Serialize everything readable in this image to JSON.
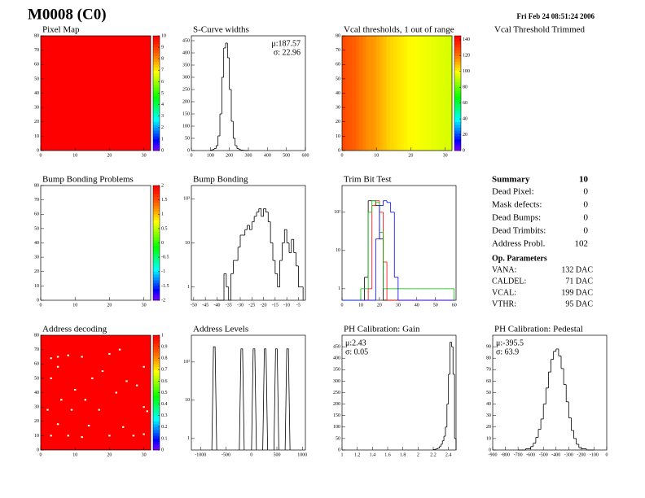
{
  "header": {
    "title": "M0008 (C0)",
    "date": "Fri Feb 24 08:51:24 2006"
  },
  "chart_data": [
    {
      "type": "heatmap",
      "title": "Pixel Map",
      "xlim": [
        0,
        32
      ],
      "ylim": [
        0,
        80
      ],
      "xticks": [
        0,
        10,
        20,
        30
      ],
      "yticks": [
        0,
        10,
        20,
        30,
        40,
        50,
        60,
        70,
        80
      ],
      "zlim": [
        0,
        10
      ],
      "zticks": [
        0,
        1,
        2,
        3,
        4,
        5,
        6,
        7,
        8,
        9,
        10
      ],
      "fill_value": 10
    },
    {
      "type": "histogram",
      "title": "S-Curve widths",
      "xlim": [
        0,
        600
      ],
      "ylim": [
        0,
        470
      ],
      "xticks": [
        0,
        100,
        200,
        300,
        400,
        500,
        600
      ],
      "yticks": [
        0,
        50,
        100,
        150,
        200,
        250,
        300,
        350,
        400,
        450
      ],
      "stats": [
        "μ:187.57",
        "σ: 22.96"
      ],
      "stats_corner": "right",
      "color": "#000000",
      "bins": [
        100,
        110,
        120,
        130,
        140,
        150,
        160,
        170,
        180,
        190,
        200,
        210,
        220,
        230,
        240,
        250,
        260,
        270,
        280,
        290,
        300
      ],
      "values": [
        2,
        4,
        8,
        20,
        60,
        150,
        300,
        420,
        440,
        380,
        250,
        120,
        50,
        20,
        8,
        4,
        2,
        1,
        0,
        0
      ]
    },
    {
      "type": "heatmap",
      "title": "Vcal thresholds, 1 out of range",
      "xlim": [
        0,
        32
      ],
      "ylim": [
        0,
        80
      ],
      "xticks": [
        0,
        10,
        20,
        30
      ],
      "yticks": [
        0,
        10,
        20,
        30,
        40,
        50,
        60,
        70,
        80
      ],
      "zlim": [
        0,
        145
      ],
      "zticks": [
        0,
        20,
        40,
        60,
        80,
        100,
        120,
        140
      ],
      "column_values": [
        128,
        126,
        125,
        124,
        122,
        120,
        118,
        116,
        115,
        114,
        112,
        110,
        108,
        106,
        105,
        104,
        103,
        102,
        101,
        100,
        100,
        99,
        98,
        98,
        97,
        97,
        96,
        96,
        95,
        95,
        94,
        94
      ]
    },
    {
      "type": "blank",
      "title": "Vcal Threshold Trimmed"
    },
    {
      "type": "heatmap",
      "title": "Bump Bonding Problems",
      "xlim": [
        0,
        32
      ],
      "ylim": [
        0,
        80
      ],
      "xticks": [
        0,
        10,
        20,
        30
      ],
      "yticks": [
        0,
        10,
        20,
        30,
        40,
        50,
        60,
        70,
        80
      ],
      "zlim": [
        -2,
        2
      ],
      "zticks": [
        -2,
        -1.5,
        -1,
        -0.5,
        0,
        0.5,
        1,
        1.5,
        2
      ]
    },
    {
      "type": "histogram",
      "title": "Bump Bonding",
      "log": true,
      "xlim": [
        -51,
        -2
      ],
      "ylim": [
        0.5,
        200
      ],
      "xticks": [
        -50,
        -45,
        -40,
        -35,
        -30,
        -25,
        -20,
        -15,
        -10,
        -5
      ],
      "yticks": [
        1,
        10,
        {
          "value": 100,
          "label": "10²"
        }
      ],
      "color": "#000000",
      "bins": [
        -40,
        -39,
        -38,
        -37,
        -36,
        -35,
        -34,
        -33,
        -32,
        -31,
        -30,
        -29,
        -28,
        -27,
        -26,
        -25,
        -24,
        -23,
        -22,
        -21,
        -20,
        -19,
        -18,
        -17,
        -16,
        -15,
        -14,
        -13,
        -12,
        -11,
        -10,
        -9,
        -8,
        -7,
        -6,
        -5,
        -4,
        -3
      ],
      "values": [
        0,
        0,
        0,
        2,
        1,
        0,
        2,
        4,
        4,
        8,
        15,
        15,
        20,
        25,
        20,
        30,
        40,
        50,
        60,
        40,
        60,
        50,
        30,
        10,
        4,
        2,
        1,
        4,
        10,
        20,
        10,
        6,
        12,
        6,
        3,
        1,
        1
      ]
    },
    {
      "type": "histogram",
      "title": "Trim Bit Test",
      "log": true,
      "xlim": [
        0,
        61
      ],
      "ylim": [
        0.5,
        500
      ],
      "xticks": [
        0,
        10,
        20,
        30,
        40,
        50,
        60
      ],
      "yticks": [
        1,
        10,
        {
          "value": 100,
          "label": "10²"
        }
      ],
      "bins": [
        0,
        2,
        4,
        6,
        8,
        10,
        12,
        14,
        16,
        18,
        20,
        22,
        24,
        26,
        28,
        30,
        32,
        34,
        36,
        38,
        40,
        42,
        44,
        46,
        48,
        50,
        52,
        54,
        56,
        58,
        60
      ],
      "series": [
        {
          "color": "#000000",
          "values": [
            0,
            0,
            0,
            0,
            0,
            0,
            2,
            200,
            200,
            150,
            20,
            0,
            0,
            0,
            0,
            0,
            0,
            0,
            0,
            0,
            0,
            0,
            0,
            0,
            0,
            0,
            0,
            0,
            0,
            0
          ]
        },
        {
          "color": "#ff0000",
          "values": [
            0,
            0,
            0,
            0,
            0,
            0,
            0,
            1,
            150,
            200,
            100,
            5,
            0,
            0,
            0,
            0,
            0,
            0,
            0,
            0,
            0,
            0,
            0,
            0,
            0,
            0,
            0,
            0,
            0,
            0
          ]
        },
        {
          "color": "#00c000",
          "values": [
            0,
            0,
            0,
            0,
            0,
            1,
            1,
            100,
            200,
            180,
            30,
            1,
            1,
            1,
            1,
            1,
            1,
            1,
            1,
            1,
            1,
            1,
            1,
            1,
            1,
            1,
            1,
            1,
            1,
            1
          ]
        },
        {
          "color": "#0000ff",
          "values": [
            0,
            0,
            0,
            0,
            0,
            0,
            0,
            0,
            0,
            20,
            150,
            200,
            180,
            100,
            2,
            0,
            0,
            0,
            0,
            0,
            0,
            0,
            0,
            0,
            0,
            0,
            0,
            0,
            0,
            0
          ]
        }
      ]
    },
    {
      "type": "heatmap",
      "title": "Address decoding",
      "xlim": [
        0,
        32
      ],
      "ylim": [
        0,
        80
      ],
      "xticks": [
        0,
        10,
        20,
        30
      ],
      "yticks": [
        0,
        10,
        20,
        30,
        40,
        50,
        60,
        70,
        80
      ],
      "zlim": [
        0,
        1
      ],
      "zticks": [
        0,
        0.1,
        0.2,
        0.3,
        0.4,
        0.5,
        0.6,
        0.7,
        0.8,
        0.9,
        1
      ],
      "fill_value": 1,
      "points": {
        "x": [
          3,
          5,
          8,
          12,
          20,
          23,
          5,
          18,
          30,
          3,
          15,
          25,
          28,
          10,
          22,
          6,
          13,
          30,
          2,
          9,
          17,
          31,
          5,
          14,
          24,
          3,
          8,
          12,
          20,
          27,
          30
        ],
        "y": [
          64,
          65,
          66,
          65,
          67,
          70,
          58,
          55,
          58,
          50,
          50,
          48,
          45,
          42,
          40,
          35,
          35,
          30,
          28,
          28,
          28,
          27,
          18,
          17,
          16,
          10,
          10,
          9,
          10,
          10,
          11
        ]
      }
    },
    {
      "type": "spikes",
      "title": "Address Levels",
      "log": true,
      "xlim": [
        -1180,
        1060
      ],
      "ylim": [
        0.5,
        500
      ],
      "xticks": [
        -1000,
        -500,
        0,
        500,
        1000
      ],
      "yticks": [
        1,
        10,
        {
          "value": 100,
          "label": "10²"
        }
      ],
      "color": "#000000",
      "x": [
        -730,
        -190,
        50,
        270,
        490,
        710
      ],
      "values": [
        250,
        220,
        220,
        220,
        220,
        220
      ]
    },
    {
      "type": "histogram",
      "title": "PH Calibration: Gain",
      "xlim": [
        1,
        2.5
      ],
      "ylim": [
        0,
        500
      ],
      "xticks": [
        1,
        1.2,
        1.4,
        1.6,
        1.8,
        2,
        2.2,
        2.4
      ],
      "yticks": [
        0,
        50,
        100,
        150,
        200,
        250,
        300,
        350,
        400,
        450
      ],
      "stats": [
        "μ:2.43",
        "σ: 0.05"
      ],
      "stats_corner": "left",
      "color": "#000000",
      "bins": [
        2.2,
        2.22,
        2.24,
        2.26,
        2.28,
        2.3,
        2.32,
        2.34,
        2.36,
        2.38,
        2.4,
        2.42,
        2.44,
        2.46,
        2.48,
        2.5
      ],
      "values": [
        2,
        3,
        5,
        8,
        15,
        25,
        40,
        60,
        100,
        200,
        330,
        470,
        450,
        330,
        50
      ]
    },
    {
      "type": "histogram",
      "title": "PH Calibration: Pedestal",
      "xlim": [
        -900,
        0
      ],
      "ylim": [
        0,
        100
      ],
      "xticks": [
        -900,
        -800,
        -700,
        -600,
        -500,
        -400,
        -300,
        -200,
        -100,
        0
      ],
      "yticks": [
        0,
        10,
        20,
        30,
        40,
        50,
        60,
        70,
        80,
        90
      ],
      "stats": [
        "μ:-395.5",
        "σ: 63.9"
      ],
      "stats_corner": "left",
      "color": "#000000",
      "bins": [
        -700,
        -680,
        -660,
        -640,
        -620,
        -600,
        -580,
        -560,
        -540,
        -520,
        -500,
        -480,
        -460,
        -440,
        -420,
        -400,
        -380,
        -360,
        -340,
        -320,
        -300,
        -280,
        -260,
        -240,
        -220,
        -200,
        -180,
        -160,
        -140,
        -120,
        -100
      ],
      "values": [
        0,
        0,
        0,
        1,
        1,
        3,
        6,
        11,
        18,
        27,
        40,
        54,
        68,
        79,
        86,
        88,
        82,
        71,
        57,
        42,
        28,
        17,
        10,
        5,
        2,
        1,
        1,
        0,
        0,
        0
      ]
    }
  ],
  "summary": {
    "title": "Summary",
    "count": 10,
    "rows": [
      {
        "label": "Dead Pixel:",
        "value": 0
      },
      {
        "label": "Mask defects:",
        "value": 0
      },
      {
        "label": "Dead Bumps:",
        "value": 0
      },
      {
        "label": "Dead Trimbits:",
        "value": 0
      },
      {
        "label": "Address Probl.",
        "value": 102
      }
    ],
    "op_title": "Op. Parameters",
    "op_rows": [
      {
        "label": "VANA:",
        "value": "132 DAC"
      },
      {
        "label": "CALDEL:",
        "value": "71 DAC"
      },
      {
        "label": "VCAL:",
        "value": "199 DAC"
      },
      {
        "label": "VTHR:",
        "value": "95 DAC"
      }
    ]
  }
}
